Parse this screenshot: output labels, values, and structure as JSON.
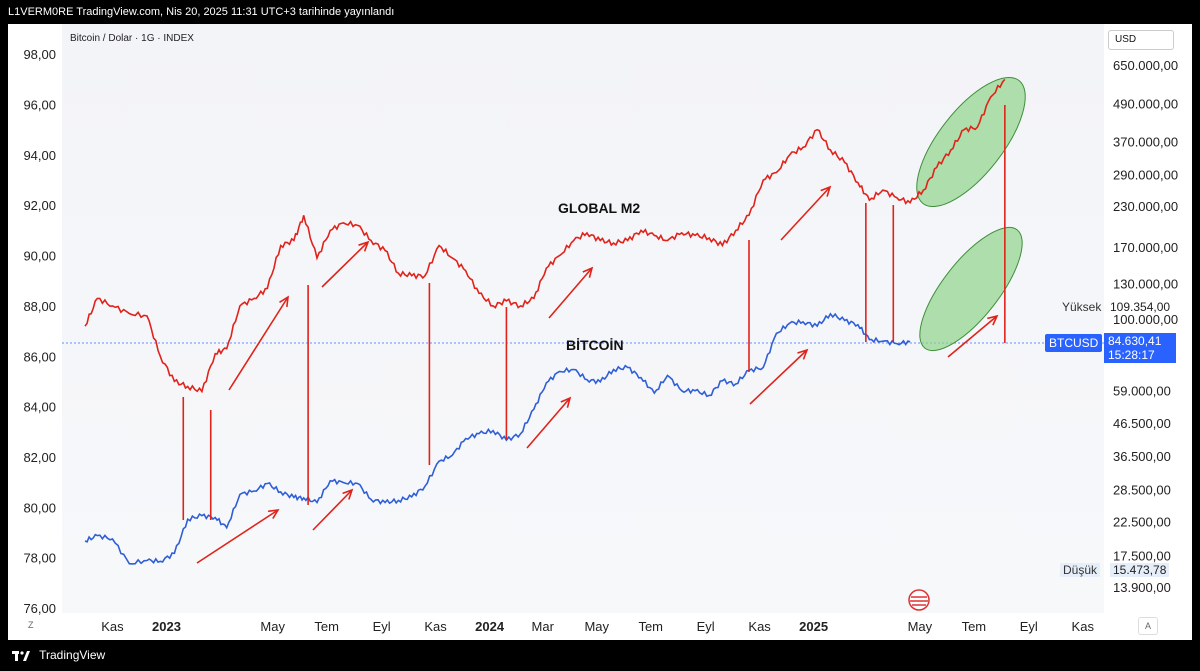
{
  "header": {
    "publisher_line": "L1VERM0RE TradingView.com, Nis 20, 2025 11:31 UTC+3 tarihinde yayınlandı"
  },
  "legend": {
    "symbol_line": "Bitcoin / Dolar · 1G · INDEX"
  },
  "controls": {
    "currency": "USD",
    "zoom_btn": "Z",
    "auto_btn": "A"
  },
  "footer": {
    "brand": "TradingView"
  },
  "annotations": {
    "m2_label": "GLOBAL M2",
    "btc_label": "BİTCOİN"
  },
  "price_scale": {
    "high_label": "Yüksek",
    "high_value": "109.354,00",
    "low_label": "Düşük",
    "low_value": "15.473,78",
    "symbol_tag": "BTCUSD",
    "last_price": "84.630,41",
    "countdown": "15:28:17"
  },
  "colors": {
    "m2": "#e0231a",
    "btc": "#2f5fd6",
    "arrows": "#e0231a",
    "ellipse_fill": "#8fd48a",
    "ellipse_stroke": "#3f8f3a",
    "accent": "#2962ff"
  },
  "chart_data": {
    "type": "line",
    "x_ticks": [
      {
        "label": "Kas",
        "bold": false
      },
      {
        "label": "2023",
        "bold": true
      },
      {
        "label": "May",
        "bold": false
      },
      {
        "label": "Tem",
        "bold": false
      },
      {
        "label": "Eyl",
        "bold": false
      },
      {
        "label": "Kas",
        "bold": false
      },
      {
        "label": "2024",
        "bold": true
      },
      {
        "label": "Mar",
        "bold": false
      },
      {
        "label": "May",
        "bold": false
      },
      {
        "label": "Tem",
        "bold": false
      },
      {
        "label": "Eyl",
        "bold": false
      },
      {
        "label": "Kas",
        "bold": false
      },
      {
        "label": "2025",
        "bold": true
      },
      {
        "label": "May",
        "bold": false
      },
      {
        "label": "Tem",
        "bold": false
      },
      {
        "label": "Eyl",
        "bold": false
      },
      {
        "label": "Kas",
        "bold": false
      }
    ],
    "left_axis": {
      "range": [
        75.8,
        99.2
      ],
      "ticks": [
        "76,00",
        "78,00",
        "80,00",
        "82,00",
        "84,00",
        "86,00",
        "88,00",
        "90,00",
        "92,00",
        "94,00",
        "96,00",
        "98,00"
      ]
    },
    "right_axis": {
      "scale": "log",
      "ticks": [
        "13.900,00",
        "17.500,00",
        "22.500,00",
        "28.500,00",
        "36.500,00",
        "46.500,00",
        "59.000,00",
        "100.000,00",
        "130.000,00",
        "170.000,00",
        "230.000,00",
        "290.000,00",
        "370.000,00",
        "490.000,00",
        "650.000,00"
      ]
    },
    "series": [
      {
        "name": "GLOBAL M2",
        "axis": "left",
        "x": [
          "2022-10-01",
          "2022-10-15",
          "2022-11-01",
          "2022-11-20",
          "2022-12-10",
          "2022-12-25",
          "2023-01-10",
          "2023-01-25",
          "2023-02-10",
          "2023-02-25",
          "2023-03-10",
          "2023-03-25",
          "2023-04-10",
          "2023-04-25",
          "2023-05-10",
          "2023-05-25",
          "2023-06-05",
          "2023-06-20",
          "2023-07-05",
          "2023-07-20",
          "2023-08-05",
          "2023-08-20",
          "2023-09-05",
          "2023-09-20",
          "2023-10-05",
          "2023-10-20",
          "2023-11-05",
          "2023-11-20",
          "2023-12-05",
          "2023-12-20",
          "2024-01-05",
          "2024-01-20",
          "2024-02-05",
          "2024-02-20",
          "2024-03-05",
          "2024-03-20",
          "2024-04-05",
          "2024-04-20",
          "2024-05-05",
          "2024-05-20",
          "2024-06-05",
          "2024-06-20",
          "2024-07-05",
          "2024-07-20",
          "2024-08-05",
          "2024-08-20",
          "2024-09-05",
          "2024-09-20",
          "2024-10-05",
          "2024-10-20",
          "2024-11-05",
          "2024-11-20",
          "2024-12-05",
          "2024-12-20",
          "2025-01-05",
          "2025-01-20",
          "2025-02-05",
          "2025-02-20",
          "2025-03-05",
          "2025-03-20",
          "2025-04-05",
          "2025-04-20",
          "2025-05-05",
          "2025-05-20",
          "2025-06-05",
          "2025-06-20",
          "2025-07-05",
          "2025-07-20",
          "2025-08-05"
        ],
        "y": [
          87.2,
          88.3,
          88.0,
          87.7,
          87.6,
          86.0,
          85.0,
          84.8,
          84.6,
          86.1,
          86.3,
          88.0,
          88.3,
          88.7,
          90.4,
          90.6,
          91.6,
          89.9,
          91.0,
          91.3,
          91.2,
          90.6,
          90.2,
          89.3,
          89.2,
          89.2,
          90.4,
          89.9,
          89.4,
          88.5,
          88.0,
          88.2,
          88.0,
          88.3,
          89.5,
          90.0,
          90.6,
          90.9,
          90.6,
          90.5,
          90.6,
          91.0,
          90.8,
          90.6,
          90.9,
          90.8,
          90.7,
          90.4,
          91.0,
          91.6,
          93.0,
          93.3,
          94.0,
          94.3,
          95.0,
          94.2,
          93.7,
          92.9,
          92.2,
          92.6,
          92.3,
          92.1,
          92.6,
          93.5,
          94.2,
          95.0,
          95.1,
          96.3,
          97.0
        ]
      },
      {
        "name": "BİTCOİN",
        "axis": "right",
        "x": [
          "2022-10-01",
          "2022-10-15",
          "2022-11-01",
          "2022-11-20",
          "2022-12-10",
          "2022-12-25",
          "2023-01-10",
          "2023-01-25",
          "2023-02-10",
          "2023-02-25",
          "2023-03-10",
          "2023-03-25",
          "2023-04-10",
          "2023-04-25",
          "2023-05-10",
          "2023-05-25",
          "2023-06-05",
          "2023-06-20",
          "2023-07-05",
          "2023-07-20",
          "2023-08-05",
          "2023-08-20",
          "2023-09-05",
          "2023-09-20",
          "2023-10-05",
          "2023-10-20",
          "2023-11-05",
          "2023-11-20",
          "2023-12-05",
          "2023-12-20",
          "2024-01-05",
          "2024-01-20",
          "2024-02-05",
          "2024-02-20",
          "2024-03-05",
          "2024-03-20",
          "2024-04-05",
          "2024-04-20",
          "2024-05-05",
          "2024-05-20",
          "2024-06-05",
          "2024-06-20",
          "2024-07-05",
          "2024-07-20",
          "2024-08-05",
          "2024-08-20",
          "2024-09-05",
          "2024-09-20",
          "2024-10-05",
          "2024-10-20",
          "2024-11-05",
          "2024-11-20",
          "2024-12-05",
          "2024-12-20",
          "2025-01-05",
          "2025-01-20",
          "2025-02-05",
          "2025-02-20",
          "2025-03-05",
          "2025-03-20",
          "2025-04-05",
          "2025-04-20"
        ],
        "y": [
          19500,
          20300,
          19800,
          16500,
          16900,
          16800,
          17800,
          22900,
          23500,
          23200,
          21500,
          27500,
          28200,
          29800,
          28000,
          26900,
          26800,
          25900,
          30400,
          30000,
          29800,
          26500,
          25900,
          26300,
          27000,
          29200,
          35100,
          36700,
          41500,
          43000,
          44000,
          41000,
          43000,
          51500,
          62500,
          68000,
          69000,
          64000,
          63000,
          69000,
          70000,
          65000,
          58000,
          66000,
          59000,
          59000,
          57000,
          63500,
          62000,
          68500,
          70000,
          90000,
          97000,
          98000,
          95000,
          104000,
          99000,
          96000,
          86000,
          85000,
          83500,
          84630
        ]
      }
    ]
  }
}
